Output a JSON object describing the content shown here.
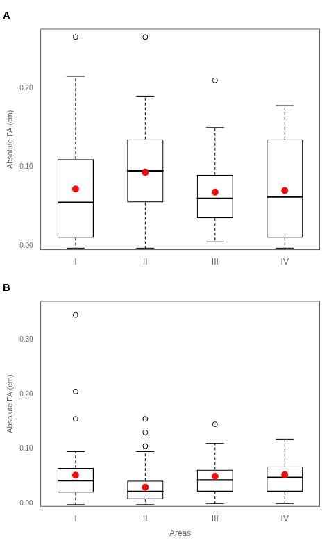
{
  "chart_data": [
    {
      "type": "box",
      "title": "A",
      "y_label": "Absolute FA (cm)",
      "categories": [
        "I",
        "II",
        "III",
        "IV"
      ],
      "boxes": [
        {
          "q1": 0.01,
          "median": 0.055,
          "q3": 0.11,
          "whislo": -0.003,
          "whishi": 0.215,
          "mean": 0.072,
          "fliers": [
            0.265
          ]
        },
        {
          "q1": 0.055,
          "median": 0.095,
          "q3": 0.135,
          "whislo": -0.003,
          "whishi": 0.19,
          "mean": 0.093,
          "fliers": [
            0.265
          ]
        },
        {
          "q1": 0.035,
          "median": 0.06,
          "q3": 0.09,
          "whislo": 0.005,
          "whishi": 0.15,
          "mean": 0.068,
          "fliers": [
            0.21
          ]
        },
        {
          "q1": 0.01,
          "median": 0.062,
          "q3": 0.135,
          "whislo": -0.003,
          "whishi": 0.178,
          "mean": 0.07,
          "fliers": []
        }
      ],
      "color": "#FF0000",
      "ylim": [
        -0.005,
        0.275
      ],
      "yticks": [
        {
          "value": 0.0,
          "label": "0.00"
        },
        {
          "value": 0.1,
          "label": "0.10"
        },
        {
          "value": 0.2,
          "label": "0.20"
        }
      ],
      "grid": false
    },
    {
      "type": "box",
      "title": "B",
      "y_label": "Absolute FA (cm)",
      "x_label": "Areas",
      "categories": [
        "I",
        "II",
        "III",
        "IV"
      ],
      "boxes": [
        {
          "q1": 0.02,
          "median": 0.042,
          "q3": 0.065,
          "whislo": -0.002,
          "whishi": 0.095,
          "mean": 0.052,
          "fliers": [
            0.155,
            0.205,
            0.345
          ]
        },
        {
          "q1": 0.008,
          "median": 0.022,
          "q3": 0.042,
          "whislo": -0.002,
          "whishi": 0.095,
          "mean": 0.03,
          "fliers": [
            0.105,
            0.13,
            0.155
          ]
        },
        {
          "q1": 0.022,
          "median": 0.043,
          "q3": 0.062,
          "whislo": 0.0,
          "whishi": 0.11,
          "mean": 0.05,
          "fliers": [
            0.145
          ]
        },
        {
          "q1": 0.022,
          "median": 0.048,
          "q3": 0.068,
          "whislo": 0.0,
          "whishi": 0.118,
          "mean": 0.053,
          "fliers": []
        }
      ],
      "color": "#FF0000",
      "ylim": [
        -0.005,
        0.37
      ],
      "yticks": [
        {
          "value": 0.0,
          "label": "0.00"
        },
        {
          "value": 0.1,
          "label": "0.10"
        },
        {
          "value": 0.2,
          "label": "0.20"
        },
        {
          "value": 0.3,
          "label": "0.30"
        }
      ],
      "grid": false
    }
  ]
}
